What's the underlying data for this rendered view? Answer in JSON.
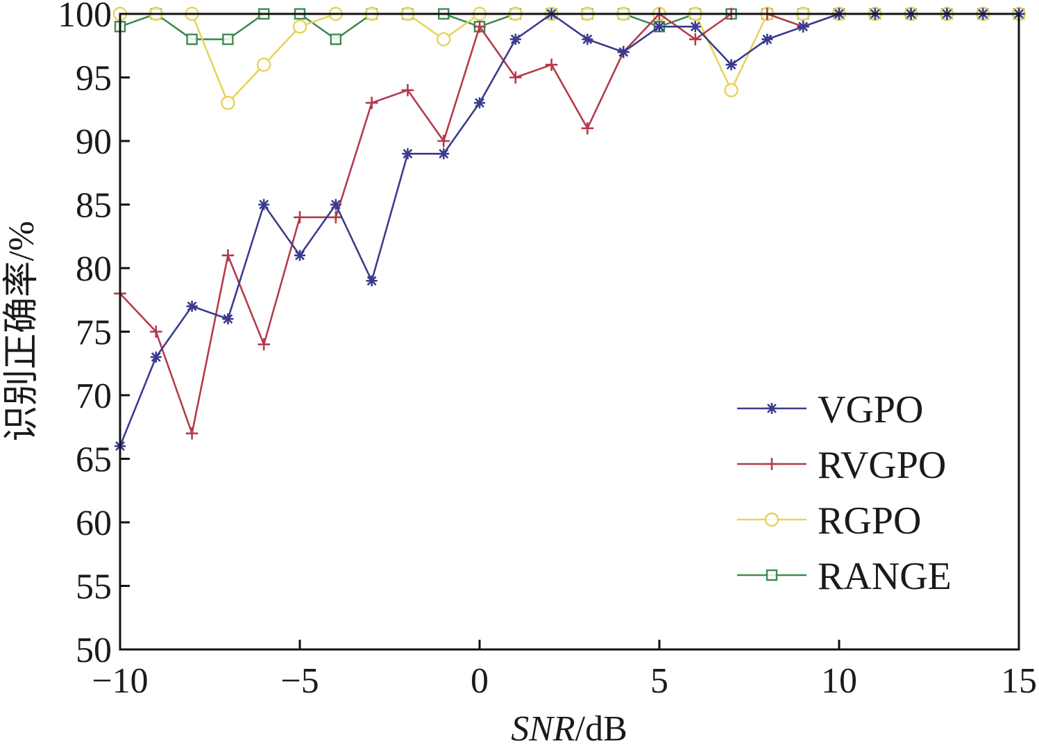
{
  "chart_data": {
    "type": "line",
    "title": "",
    "xlabel_italic": "SNR",
    "xlabel_unit": "/dB",
    "ylabel": "识别正确率/%",
    "xlim": [
      -10,
      15
    ],
    "ylim": [
      50,
      100
    ],
    "x_ticks": [
      -10,
      -5,
      0,
      5,
      10,
      15
    ],
    "x_tick_labels": [
      "−10",
      "−5",
      "0",
      "5",
      "10",
      "15"
    ],
    "y_ticks": [
      50,
      55,
      60,
      65,
      70,
      75,
      80,
      85,
      90,
      95,
      100
    ],
    "y_tick_labels": [
      "50",
      "55",
      "60",
      "65",
      "70",
      "75",
      "80",
      "85",
      "90",
      "95",
      "100"
    ],
    "grid": false,
    "legend_position": "bottom-right",
    "x": [
      -10,
      -9,
      -8,
      -7,
      -6,
      -5,
      -4,
      -3,
      -2,
      -1,
      0,
      1,
      2,
      3,
      4,
      5,
      6,
      7,
      8,
      9,
      10,
      11,
      12,
      13,
      14,
      15
    ],
    "series": [
      {
        "name": "VGPO",
        "color": "#3b3b8f",
        "marker": "asterisk",
        "values": [
          66,
          73,
          77,
          76,
          85,
          81,
          85,
          79,
          89,
          89,
          93,
          98,
          100,
          98,
          97,
          99,
          99,
          96,
          98,
          99,
          100,
          100,
          100,
          100,
          100,
          100
        ]
      },
      {
        "name": "RVGPO",
        "color": "#b43a4a",
        "marker": "plus",
        "values": [
          78,
          75,
          67,
          81,
          74,
          84,
          84,
          93,
          94,
          90,
          99,
          95,
          96,
          91,
          97,
          100,
          98,
          100,
          100,
          99,
          100,
          100,
          100,
          100,
          100,
          100
        ]
      },
      {
        "name": "RGPO",
        "color": "#e6d35a",
        "marker": "circle",
        "values": [
          100,
          100,
          100,
          93,
          96,
          99,
          100,
          100,
          100,
          98,
          100,
          100,
          100,
          100,
          100,
          100,
          100,
          94,
          100,
          100,
          100,
          100,
          100,
          100,
          100,
          100
        ]
      },
      {
        "name": "RANGE",
        "color": "#3d8a4e",
        "marker": "square",
        "values": [
          99,
          100,
          98,
          98,
          100,
          100,
          98,
          100,
          100,
          100,
          99,
          100,
          100,
          100,
          100,
          99,
          100,
          100,
          100,
          100,
          100,
          100,
          100,
          100,
          100,
          100
        ]
      }
    ]
  }
}
